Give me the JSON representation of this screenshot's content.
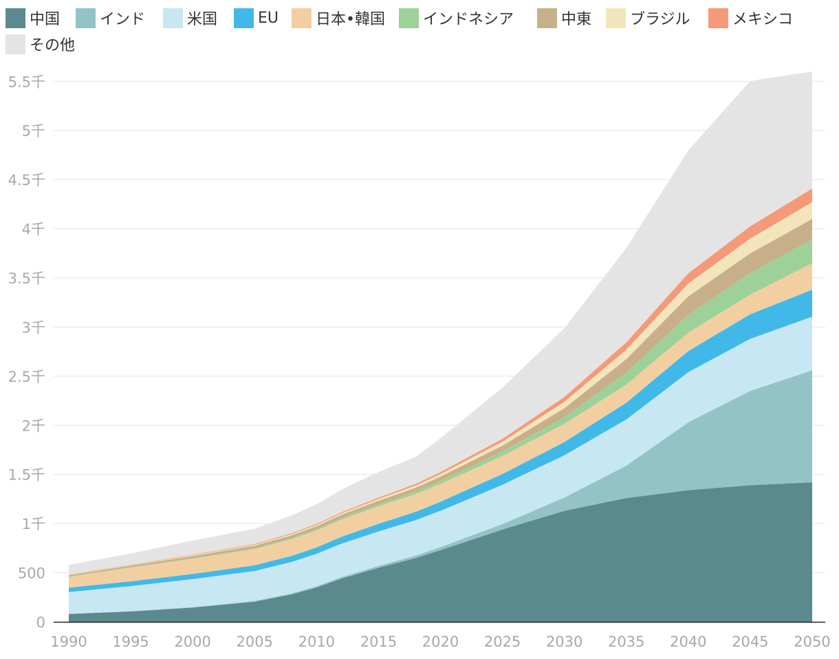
{
  "chart_data": {
    "type": "area",
    "stacked": true,
    "title": "",
    "xlabel": "",
    "ylabel": "",
    "ylim": [
      0,
      5600
    ],
    "xlim": [
      1990,
      2050
    ],
    "grid": true,
    "legend_position": "top-left",
    "x": [
      1990,
      1995,
      2000,
      2005,
      2008,
      2010,
      2012,
      2015,
      2018,
      2020,
      2025,
      2030,
      2035,
      2040,
      2045,
      2050
    ],
    "x_tick_labels": [
      "1990",
      "1995",
      "2000",
      "2005",
      "2010",
      "2015",
      "2020",
      "2025",
      "2030",
      "2035",
      "2040",
      "2045",
      "2050"
    ],
    "y_ticks": [
      {
        "value": 0,
        "label": "0"
      },
      {
        "value": 500,
        "label": "500"
      },
      {
        "value": 1000,
        "label": "1千"
      },
      {
        "value": 1500,
        "label": "1.5千"
      },
      {
        "value": 2000,
        "label": "2千"
      },
      {
        "value": 2500,
        "label": "2.5千"
      },
      {
        "value": 3000,
        "label": "3千"
      },
      {
        "value": 3500,
        "label": "3.5千"
      },
      {
        "value": 4000,
        "label": "4千"
      },
      {
        "value": 4500,
        "label": "4.5千"
      },
      {
        "value": 5000,
        "label": "5千"
      },
      {
        "value": 5500,
        "label": "5.5千"
      }
    ],
    "series": [
      {
        "name": "中国",
        "color": "#5a8a8e",
        "values": [
          80,
          105,
          145,
          205,
          280,
          350,
          440,
          550,
          650,
          730,
          940,
          1130,
          1260,
          1340,
          1390,
          1420
        ]
      },
      {
        "name": "インド",
        "color": "#93c3c7",
        "values": [
          3,
          4,
          5,
          8,
          10,
          12,
          15,
          20,
          25,
          30,
          55,
          135,
          330,
          690,
          960,
          1140
        ]
      },
      {
        "name": "米国",
        "color": "#c7e7f2",
        "values": [
          220,
          255,
          285,
          305,
          320,
          330,
          340,
          350,
          360,
          370,
          400,
          430,
          470,
          510,
          530,
          545
        ]
      },
      {
        "name": "EU",
        "color": "#41b9e8",
        "values": [
          45,
          48,
          52,
          58,
          62,
          66,
          70,
          78,
          85,
          92,
          110,
          135,
          170,
          215,
          250,
          275
        ]
      },
      {
        "name": "日本•韓国",
        "color": "#f2cfa1",
        "values": [
          110,
          140,
          155,
          165,
          170,
          172,
          175,
          178,
          180,
          181,
          183,
          184,
          185,
          187,
          200,
          270
        ]
      },
      {
        "name": "インドネシア",
        "color": "#9ed19a",
        "values": [
          4,
          5,
          7,
          9,
          11,
          13,
          16,
          20,
          25,
          30,
          45,
          70,
          120,
          180,
          220,
          240
        ]
      },
      {
        "name": "中東",
        "color": "#c7b089",
        "values": [
          12,
          16,
          20,
          25,
          28,
          30,
          33,
          36,
          40,
          45,
          60,
          90,
          140,
          190,
          200,
          210
        ]
      },
      {
        "name": "ブラジル",
        "color": "#f2e5bb",
        "values": [
          5,
          6,
          8,
          10,
          12,
          13,
          15,
          18,
          22,
          26,
          40,
          65,
          95,
          130,
          150,
          170
        ]
      },
      {
        "name": "メキシコ",
        "color": "#f49a79",
        "values": [
          3,
          4,
          6,
          8,
          10,
          11,
          12,
          14,
          17,
          20,
          30,
          50,
          75,
          105,
          125,
          140
        ]
      },
      {
        "name": "その他",
        "color": "#e4e4e4",
        "values": [
          98,
          112,
          145,
          155,
          180,
          200,
          230,
          260,
          276,
          345,
          520,
          700,
          960,
          1250,
          1480,
          1190
        ]
      }
    ]
  }
}
